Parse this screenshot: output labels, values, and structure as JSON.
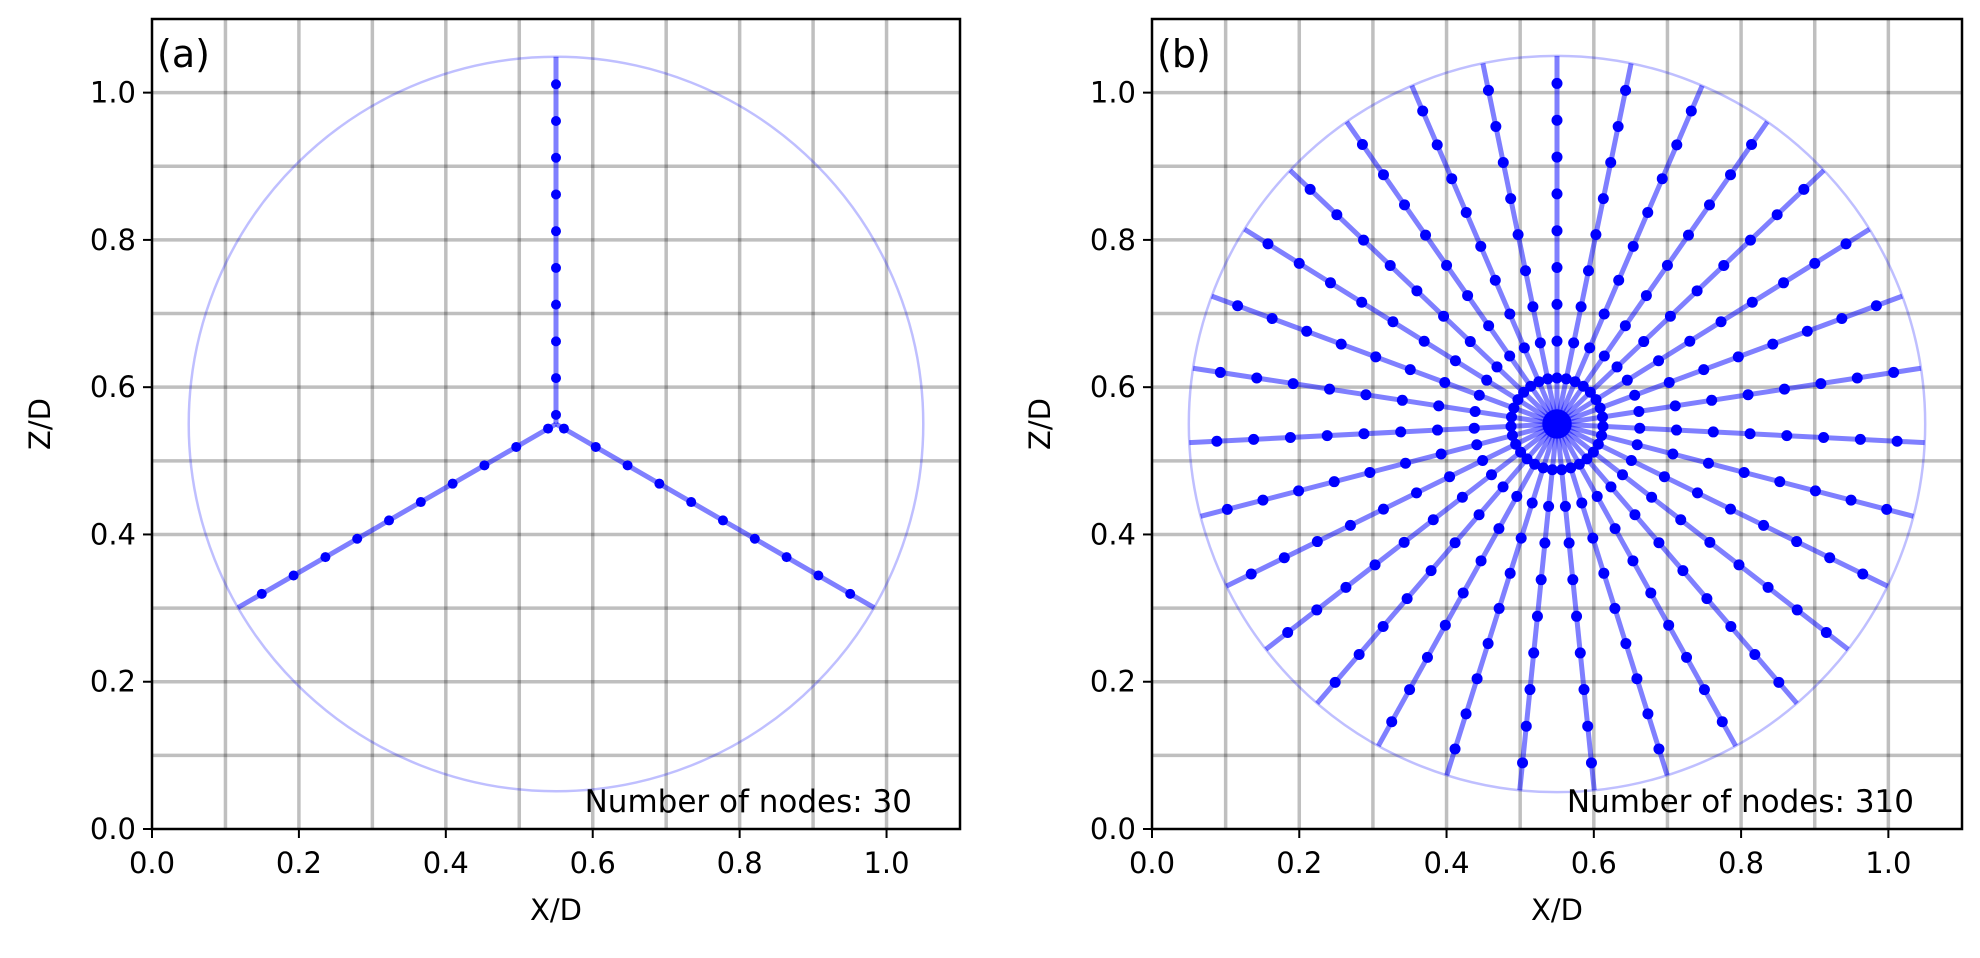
{
  "chart_data": [
    {
      "type": "scatter",
      "panel_label": "(a)",
      "xlabel": "X/D",
      "ylabel": "Z/D",
      "xlim": [
        0.0,
        1.1
      ],
      "ylim": [
        0.0,
        1.1
      ],
      "xticks": [
        "0.0",
        "0.2",
        "0.4",
        "0.6",
        "0.8",
        "1.0"
      ],
      "yticks": [
        "0.0",
        "0.2",
        "0.4",
        "0.6",
        "0.8",
        "1.0"
      ],
      "annotation": "Number of nodes: 30",
      "grid_lines_x": [
        0.1,
        0.2,
        0.3,
        0.4,
        0.5,
        0.6,
        0.7,
        0.8,
        0.9,
        1.0
      ],
      "grid_lines_z": [
        0.1,
        0.2,
        0.3,
        0.4,
        0.5,
        0.6,
        0.7,
        0.8,
        0.9,
        1.0
      ],
      "rotor_center": [
        0.55,
        0.55
      ],
      "rotor_radius": 0.5,
      "blade_count": 3,
      "blade_angles_deg": [
        90,
        210,
        330
      ],
      "nodes_per_blade": 10,
      "node_radial_fractions": [
        0.025,
        0.125,
        0.225,
        0.325,
        0.425,
        0.525,
        0.625,
        0.725,
        0.825,
        0.925
      ],
      "total_nodes": 30,
      "color": "#0000ff"
    },
    {
      "type": "scatter",
      "panel_label": "(b)",
      "xlabel": "X/D",
      "ylabel": "Z/D",
      "xlim": [
        0.0,
        1.1
      ],
      "ylim": [
        0.0,
        1.1
      ],
      "xticks": [
        "0.0",
        "0.2",
        "0.4",
        "0.6",
        "0.8",
        "1.0"
      ],
      "yticks": [
        "0.0",
        "0.2",
        "0.4",
        "0.6",
        "0.8",
        "1.0"
      ],
      "annotation": "Number of nodes: 310",
      "grid_lines_x": [
        0.1,
        0.2,
        0.3,
        0.4,
        0.5,
        0.6,
        0.7,
        0.8,
        0.9,
        1.0
      ],
      "grid_lines_z": [
        0.1,
        0.2,
        0.3,
        0.4,
        0.5,
        0.6,
        0.7,
        0.8,
        0.9,
        1.0
      ],
      "rotor_center": [
        0.55,
        0.55
      ],
      "rotor_radius": 0.5,
      "blade_count": 31,
      "blade_start_angle_deg": 90,
      "nodes_per_blade": 10,
      "node_radial_fractions": [
        0.025,
        0.125,
        0.225,
        0.325,
        0.425,
        0.525,
        0.625,
        0.725,
        0.825,
        0.925
      ],
      "total_nodes": 310,
      "color": "#0000ff"
    }
  ]
}
